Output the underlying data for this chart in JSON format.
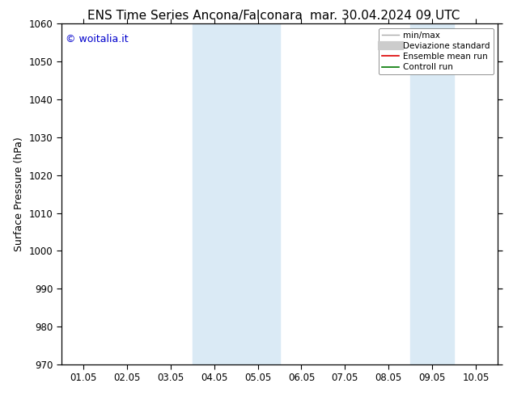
{
  "title_left": "ENS Time Series Ancona/Falconara",
  "title_right": "mar. 30.04.2024 09 UTC",
  "ylabel": "Surface Pressure (hPa)",
  "ylim": [
    970,
    1060
  ],
  "yticks": [
    970,
    980,
    990,
    1000,
    1010,
    1020,
    1030,
    1040,
    1050,
    1060
  ],
  "xtick_labels": [
    "01.05",
    "02.05",
    "03.05",
    "04.05",
    "05.05",
    "06.05",
    "07.05",
    "08.05",
    "09.05",
    "10.05"
  ],
  "x_num_ticks": 10,
  "shaded_bands": [
    {
      "xmin": 3,
      "xmax": 4
    },
    {
      "xmin": 4,
      "xmax": 5
    },
    {
      "xmin": 8,
      "xmax": 9
    }
  ],
  "band_color": "#daeaf5",
  "watermark": "© woitalia.it",
  "watermark_color": "#0000cc",
  "legend_entries": [
    {
      "label": "min/max",
      "color": "#aaaaaa",
      "lw": 1.0,
      "type": "line"
    },
    {
      "label": "Deviazione standard",
      "color": "#cccccc",
      "lw": 8,
      "type": "line"
    },
    {
      "label": "Ensemble mean run",
      "color": "#dd0000",
      "lw": 1.2,
      "type": "line"
    },
    {
      "label": "Controll run",
      "color": "#007700",
      "lw": 1.2,
      "type": "line"
    }
  ],
  "background_color": "#ffffff",
  "plot_bg_color": "#ffffff",
  "title_fontsize": 11,
  "label_fontsize": 9,
  "tick_fontsize": 8.5,
  "watermark_fontsize": 9
}
